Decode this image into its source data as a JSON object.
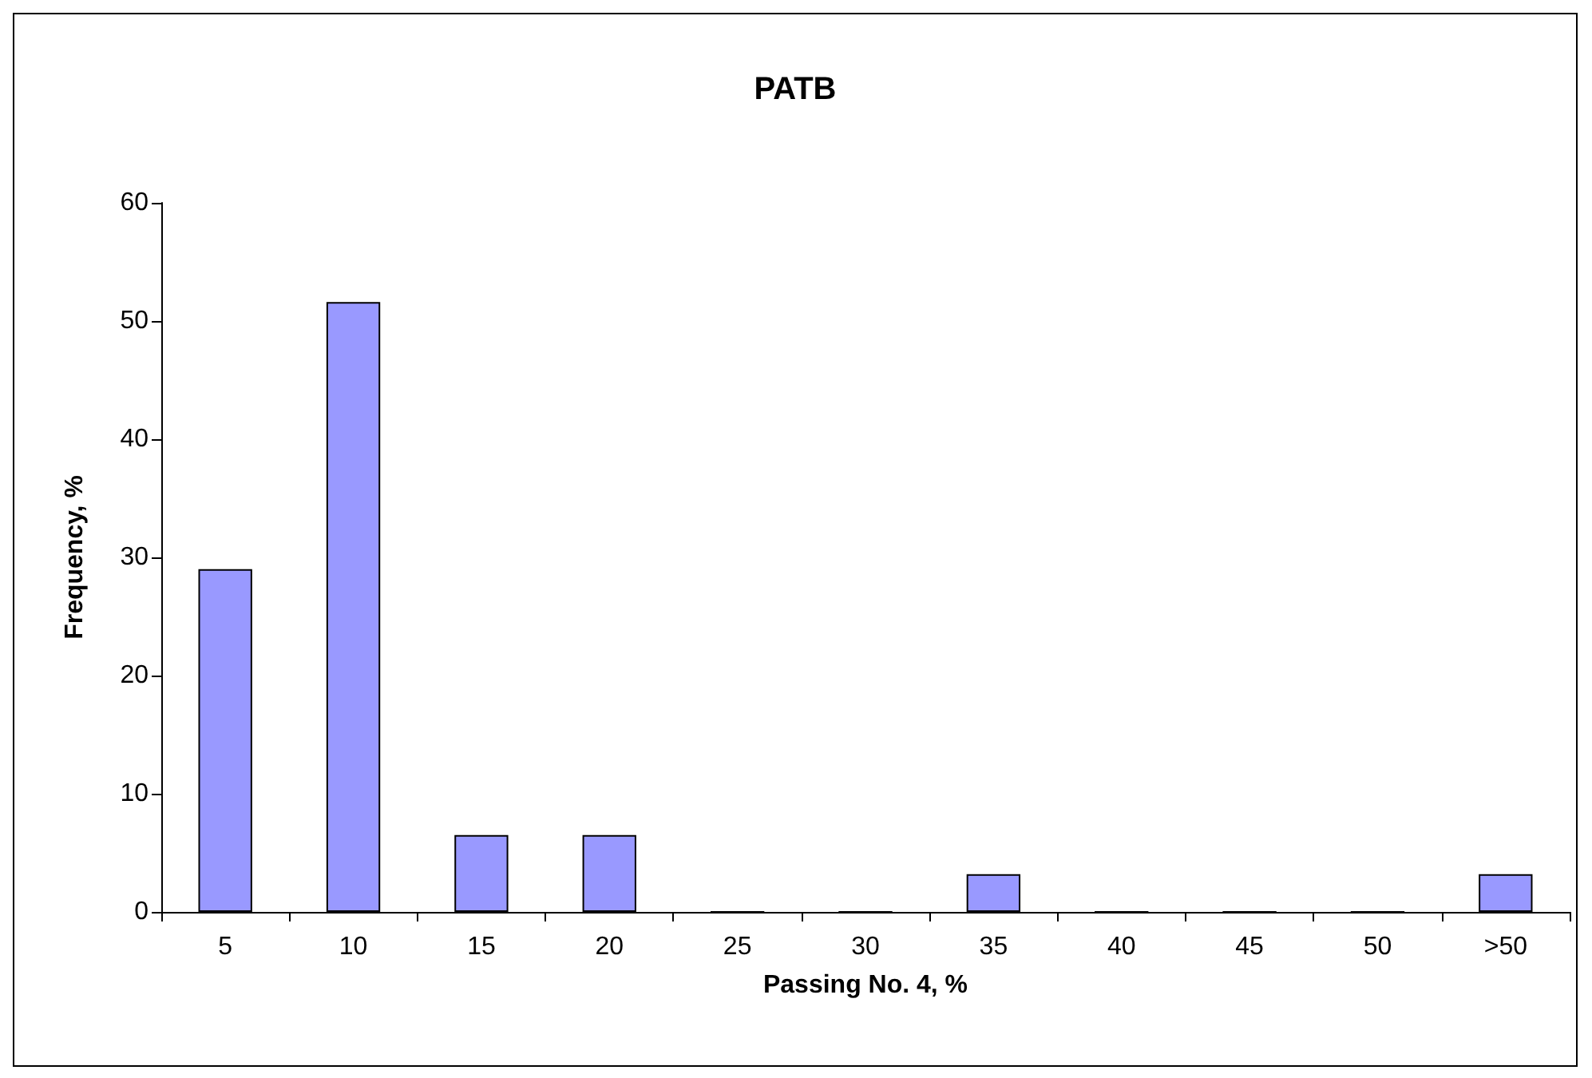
{
  "chart_data": {
    "type": "bar",
    "title": "PATB",
    "xlabel": "Passing No. 4, %",
    "ylabel": "Frequency, %",
    "categories": [
      "5",
      "10",
      "15",
      "20",
      "25",
      "30",
      "35",
      "40",
      "45",
      "50",
      ">50"
    ],
    "values": [
      29,
      51.6,
      6.5,
      6.5,
      0,
      0,
      3.2,
      0,
      0,
      0,
      3.2
    ],
    "color": "#9999ff",
    "ylim": [
      0,
      60
    ],
    "yticks": [
      0,
      10,
      20,
      30,
      40,
      50,
      60
    ]
  }
}
